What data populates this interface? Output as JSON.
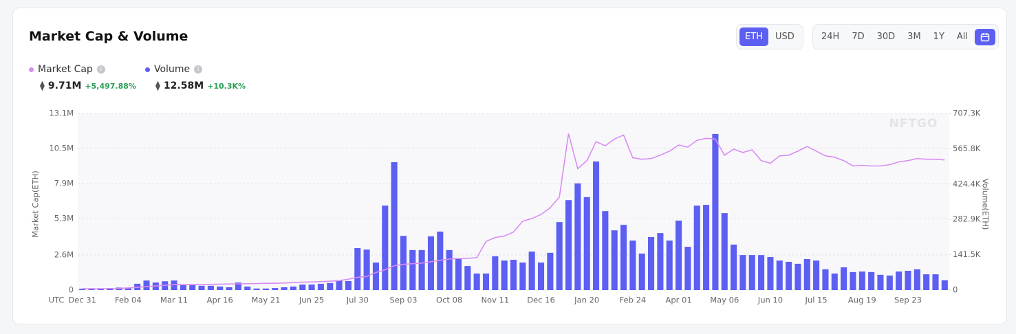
{
  "chart_data": {
    "type": "combo",
    "title": "Market Cap & Volume",
    "x_label": "UTC",
    "ylabel": "Market Cap(ETH)",
    "y2label": "Volume(ETH)",
    "watermark": "NFTGO",
    "grid": true,
    "categories": [
      "Dec 31",
      null,
      null,
      null,
      null,
      "Feb 04",
      null,
      null,
      null,
      null,
      "Mar 11",
      null,
      null,
      null,
      null,
      "Apr 16",
      null,
      null,
      null,
      null,
      "May 21",
      null,
      null,
      null,
      null,
      "Jun 25",
      null,
      null,
      null,
      null,
      "Jul 30",
      null,
      null,
      null,
      null,
      "Sep 03",
      null,
      null,
      null,
      null,
      "Oct 08",
      null,
      null,
      null,
      null,
      "Nov 11",
      null,
      null,
      null,
      null,
      "Dec 16",
      null,
      null,
      null,
      null,
      "Jan 20",
      null,
      null,
      null,
      null,
      "Feb 24",
      null,
      null,
      null,
      null,
      "Apr 01",
      null,
      null,
      null,
      null,
      "May 06",
      null,
      null,
      null,
      null,
      "Jun 10",
      null,
      null,
      null,
      null,
      "Jul 15",
      null,
      null,
      null,
      null,
      "Aug 19",
      null,
      null,
      null,
      null,
      "Sep 23",
      null,
      null,
      null,
      null
    ],
    "ylim": [
      0,
      13100000
    ],
    "yticks": [
      0,
      {
        "value": 2600000,
        "label": "2.6M"
      },
      {
        "value": 5300000,
        "label": "5.3M"
      },
      {
        "value": 7900000,
        "label": "7.9M"
      },
      {
        "value": 10500000,
        "label": "10.5M"
      },
      {
        "value": 13100000,
        "label": "13.1M"
      }
    ],
    "y2lim": [
      0,
      707300
    ],
    "y2ticks": [
      0,
      {
        "value": 141500,
        "label": "141.5K"
      },
      {
        "value": 282900,
        "label": "282.9K"
      },
      {
        "value": 424400,
        "label": "424.4K"
      },
      {
        "value": 565800,
        "label": "565.8K"
      },
      {
        "value": 707300,
        "label": "707.3K"
      }
    ],
    "series": [
      {
        "name": "Market Cap",
        "type": "line",
        "color": "#d98cf2",
        "values": [
          100000,
          100000,
          100000,
          100000,
          120000,
          150000,
          200000,
          250000,
          300000,
          350000,
          400000,
          400000,
          400000,
          420000,
          420000,
          440000,
          450000,
          460000,
          470000,
          480000,
          500000,
          500000,
          520000,
          550000,
          580000,
          600000,
          620000,
          650000,
          700000,
          800000,
          950000,
          1000000,
          1300000,
          1500000,
          1800000,
          1900000,
          1950000,
          2000000,
          2100000,
          2200000,
          2300000,
          2350000,
          2350000,
          2400000,
          3600000,
          3900000,
          4000000,
          4300000,
          5100000,
          5300000,
          5600000,
          6100000,
          6900000,
          11600000,
          9000000,
          9600000,
          11000000,
          10700000,
          11200000,
          11500000,
          9800000,
          9700000,
          9750000,
          10000000,
          10300000,
          10750000,
          10600000,
          11100000,
          11250000,
          11200000,
          10000000,
          10450000,
          10200000,
          10400000,
          9600000,
          9400000,
          9950000,
          10000000,
          10300000,
          10650000,
          10300000,
          9950000,
          9850000,
          9600000,
          9200000,
          9250000,
          9200000,
          9200000,
          9300000,
          9500000,
          9600000,
          9750000,
          9700000,
          9700000,
          9650000
        ]
      },
      {
        "name": "Volume",
        "type": "bar",
        "axis": "y2",
        "color": "#5c5ff2",
        "values": [
          5000,
          5000,
          5000,
          8000,
          10000,
          10000,
          25000,
          38000,
          30000,
          35000,
          38000,
          22000,
          20000,
          17000,
          17000,
          14000,
          11000,
          30000,
          14000,
          6000,
          6000,
          8000,
          11000,
          14000,
          22000,
          22000,
          25000,
          28000,
          38000,
          36000,
          168000,
          162000,
          110000,
          338000,
          512000,
          217000,
          160000,
          160000,
          215000,
          234000,
          160000,
          124000,
          96000,
          66000,
          66000,
          135000,
          118000,
          121000,
          110000,
          154000,
          110000,
          149000,
          272000,
          360000,
          427000,
          372000,
          515000,
          316000,
          239000,
          261000,
          198000,
          146000,
          212000,
          228000,
          198000,
          278000,
          173000,
          338000,
          341000,
          625000,
          308000,
          182000,
          140000,
          140000,
          140000,
          132000,
          118000,
          113000,
          105000,
          124000,
          118000,
          83000,
          66000,
          91000,
          72000,
          74000,
          72000,
          61000,
          58000,
          74000,
          77000,
          83000,
          63000,
          63000,
          39000
        ]
      }
    ]
  },
  "summary": [
    {
      "value": "9.71M",
      "change": "+5,497.88%"
    },
    {
      "value": "12.58M",
      "change": "+10.3K%"
    }
  ],
  "controls": {
    "currency": [
      "ETH",
      "USD"
    ],
    "ranges": [
      "24H",
      "7D",
      "30D",
      "3M",
      "1Y",
      "All"
    ]
  }
}
